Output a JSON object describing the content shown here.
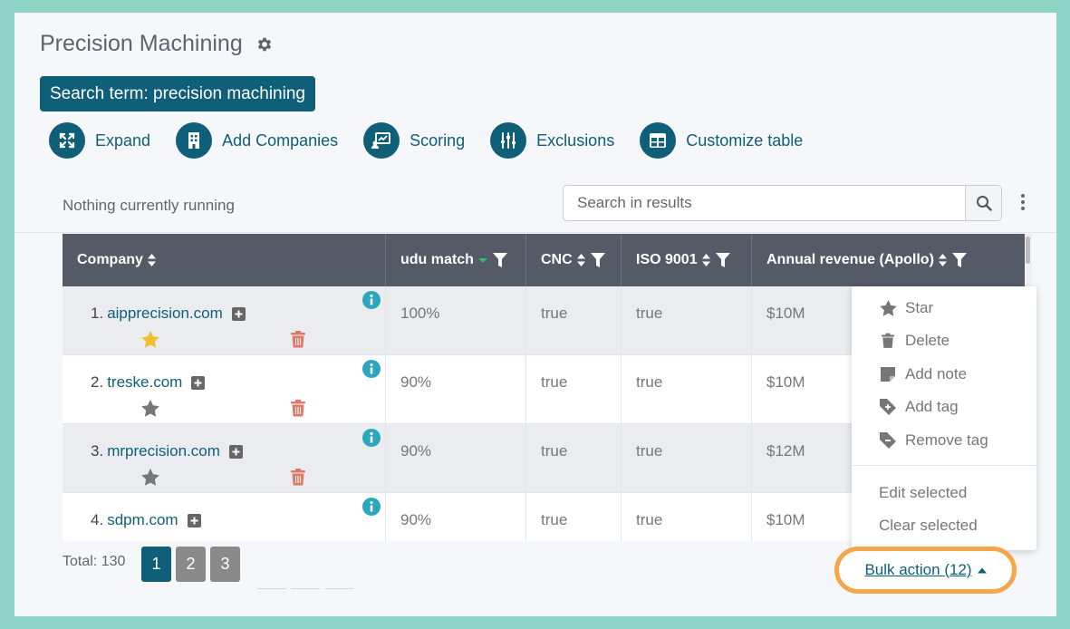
{
  "page": {
    "title": "Precision Machining",
    "search_chip": "Search term: precision machining",
    "status": "Nothing currently running"
  },
  "toolbar": [
    {
      "label": "Expand",
      "icon": "expand-icon"
    },
    {
      "label": "Add Companies",
      "icon": "building-icon"
    },
    {
      "label": "Scoring",
      "icon": "scoring-icon"
    },
    {
      "label": "Exclusions",
      "icon": "sliders-icon"
    },
    {
      "label": "Customize table",
      "icon": "table-icon"
    }
  ],
  "search": {
    "placeholder": "Search in results"
  },
  "table": {
    "columns": [
      "Company",
      "udu match",
      "CNC",
      "ISO 9001",
      "Annual revenue (Apollo)"
    ],
    "rows": [
      {
        "num": "1.",
        "company": "aipprecision.com",
        "udu": "100%",
        "cnc": "true",
        "iso": "true",
        "revenue": "$10M",
        "starred": true
      },
      {
        "num": "2.",
        "company": "treske.com",
        "udu": "90%",
        "cnc": "true",
        "iso": "true",
        "revenue": "$10M",
        "starred": false
      },
      {
        "num": "3.",
        "company": "mrprecision.com",
        "udu": "90%",
        "cnc": "true",
        "iso": "true",
        "revenue": "$12M",
        "starred": false
      },
      {
        "num": "4.",
        "company": "sdpm.com",
        "udu": "90%",
        "cnc": "true",
        "iso": "true",
        "revenue": "$10M",
        "starred": false
      }
    ]
  },
  "bulk_menu": {
    "items": [
      {
        "label": "Star",
        "icon": "star-icon"
      },
      {
        "label": "Delete",
        "icon": "trash-icon"
      },
      {
        "label": "Add note",
        "icon": "note-icon"
      },
      {
        "label": "Add tag",
        "icon": "tag-add-icon"
      },
      {
        "label": "Remove tag",
        "icon": "tag-remove-icon"
      }
    ],
    "secondary": [
      "Edit selected",
      "Clear selected"
    ]
  },
  "pagination": {
    "total": "Total: 130",
    "pages": [
      "1",
      "2",
      "3"
    ],
    "active": "1"
  },
  "bulk_action": {
    "label": "Bulk action (12)"
  },
  "colors": {
    "accent": "#0f5f78",
    "header_bg": "#545a66",
    "highlight": "#f5a54a",
    "star_active": "#f3c02b",
    "trash": "#e07a68"
  }
}
